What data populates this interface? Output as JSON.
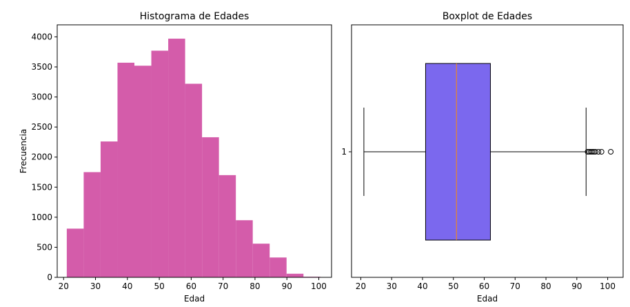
{
  "chart_data": [
    {
      "type": "bar",
      "subtype": "histogram",
      "title": "Histograma de Edades",
      "xlabel": "Edad",
      "ylabel": "Frecuencia",
      "color": "#d45caa",
      "xlim": [
        18,
        104
      ],
      "ylim": [
        0,
        4200
      ],
      "xticks": [
        20,
        30,
        40,
        50,
        60,
        70,
        80,
        90,
        100
      ],
      "yticks": [
        0,
        500,
        1000,
        1500,
        2000,
        2500,
        3000,
        3500,
        4000
      ],
      "bins": [
        {
          "x0": 21.0,
          "x1": 26.3,
          "value": 810
        },
        {
          "x0": 26.3,
          "x1": 31.6,
          "value": 1750
        },
        {
          "x0": 31.6,
          "x1": 36.9,
          "value": 2260
        },
        {
          "x0": 36.9,
          "x1": 42.2,
          "value": 3570
        },
        {
          "x0": 42.2,
          "x1": 47.5,
          "value": 3520
        },
        {
          "x0": 47.5,
          "x1": 52.8,
          "value": 3770
        },
        {
          "x0": 52.8,
          "x1": 58.1,
          "value": 3970
        },
        {
          "x0": 58.1,
          "x1": 63.4,
          "value": 3220
        },
        {
          "x0": 63.4,
          "x1": 68.7,
          "value": 2330
        },
        {
          "x0": 68.7,
          "x1": 74.0,
          "value": 1700
        },
        {
          "x0": 74.0,
          "x1": 79.3,
          "value": 950
        },
        {
          "x0": 79.3,
          "x1": 84.6,
          "value": 560
        },
        {
          "x0": 84.6,
          "x1": 89.9,
          "value": 330
        },
        {
          "x0": 89.9,
          "x1": 95.2,
          "value": 60
        },
        {
          "x0": 95.2,
          "x1": 100.5,
          "value": 10
        }
      ]
    },
    {
      "type": "boxplot",
      "title": "Boxplot de Edades",
      "xlabel": "Edad",
      "ylabel": "",
      "orientation": "horizontal",
      "box_color": "#7b68ee",
      "median_color": "#ff8c00",
      "xlim": [
        17,
        105
      ],
      "xticks": [
        20,
        30,
        40,
        50,
        60,
        70,
        80,
        90,
        100
      ],
      "categories": [
        "1"
      ],
      "stats": {
        "whisker_low": 21,
        "q1": 41,
        "median": 51,
        "q3": 62,
        "whisker_high": 93
      },
      "outliers": [
        93.5,
        94,
        94.5,
        95,
        95.5,
        96,
        97,
        98,
        101
      ]
    }
  ]
}
